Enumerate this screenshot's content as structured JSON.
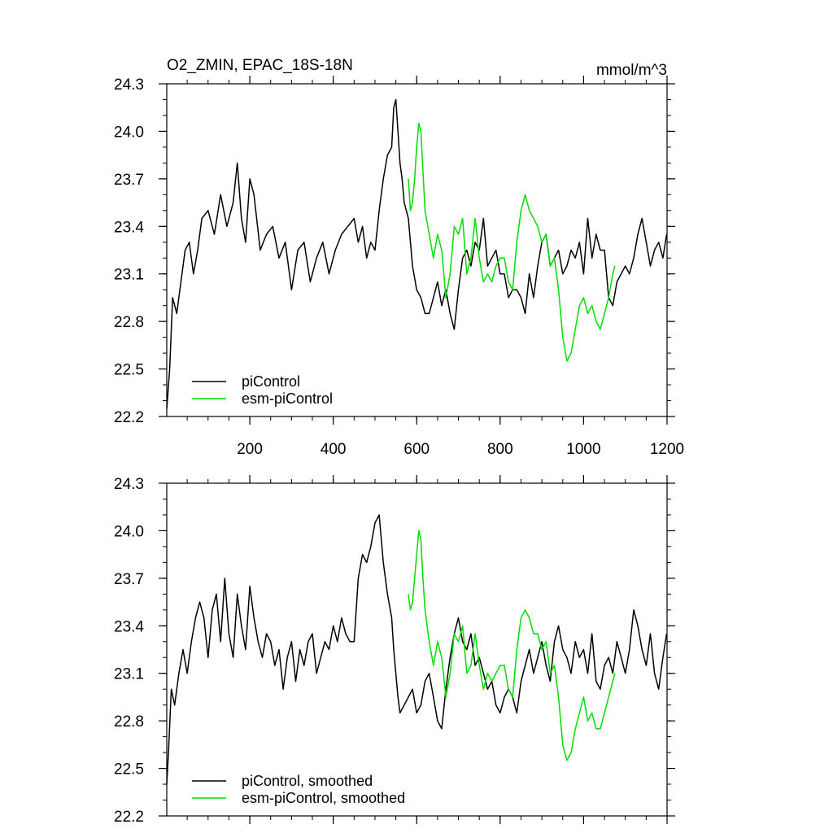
{
  "figure": {
    "title_left": "O2_ZMIN, EPAC_18S-18N",
    "title_right": "mmol/m^3"
  },
  "colors": {
    "picontrol": "#000000",
    "esm_picontrol": "#00dd00",
    "axis": "#000000"
  },
  "chart_data": [
    {
      "type": "line",
      "name": "raw",
      "xlim": [
        1,
        1200
      ],
      "ylim": [
        22.2,
        24.3
      ],
      "yticks": [
        22.2,
        22.5,
        22.8,
        23.1,
        23.4,
        23.7,
        24.0,
        24.3
      ],
      "ytick_labels": [
        "22.2",
        "22.5",
        "22.8",
        "23.1",
        "23.4",
        "23.7",
        "24.0",
        "24.3"
      ],
      "xticks": [
        200,
        400,
        600,
        800,
        1000,
        1200
      ],
      "xtick_labels": [
        "200",
        "400",
        "600",
        "800",
        "1000",
        "1200"
      ],
      "legend": {
        "position": "bottom-left",
        "entries": [
          "piControl",
          "esm-piControl"
        ]
      },
      "series": [
        {
          "name": "piControl",
          "color": "#000000",
          "x": [
            1,
            8,
            15,
            25,
            35,
            45,
            55,
            65,
            75,
            85,
            100,
            115,
            130,
            145,
            160,
            170,
            180,
            190,
            200,
            210,
            225,
            240,
            255,
            270,
            285,
            300,
            315,
            330,
            345,
            360,
            375,
            390,
            405,
            420,
            435,
            450,
            460,
            470,
            480,
            490,
            500,
            510,
            520,
            530,
            540,
            545,
            550,
            555,
            560,
            565,
            570,
            580,
            590,
            600,
            610,
            620,
            630,
            640,
            650,
            660,
            670,
            680,
            690,
            700,
            710,
            720,
            730,
            740,
            750,
            760,
            770,
            780,
            790,
            800,
            810,
            820,
            830,
            840,
            850,
            860,
            870,
            880,
            890,
            900,
            910,
            920,
            930,
            940,
            950,
            960,
            970,
            980,
            990,
            1000,
            1010,
            1020,
            1030,
            1040,
            1050,
            1060,
            1070,
            1080,
            1090,
            1100,
            1110,
            1120,
            1130,
            1140,
            1150,
            1160,
            1170,
            1180,
            1190,
            1199
          ],
          "values": [
            22.25,
            22.5,
            22.95,
            22.85,
            23.05,
            23.25,
            23.3,
            23.1,
            23.25,
            23.45,
            23.5,
            23.35,
            23.6,
            23.4,
            23.55,
            23.8,
            23.45,
            23.3,
            23.7,
            23.6,
            23.25,
            23.35,
            23.4,
            23.2,
            23.3,
            23.0,
            23.25,
            23.3,
            23.05,
            23.2,
            23.3,
            23.1,
            23.25,
            23.35,
            23.4,
            23.45,
            23.3,
            23.4,
            23.2,
            23.3,
            23.25,
            23.5,
            23.7,
            23.85,
            23.9,
            24.15,
            24.2,
            24.0,
            23.8,
            23.7,
            23.55,
            23.45,
            23.15,
            23.0,
            22.95,
            22.85,
            22.85,
            22.95,
            23.05,
            22.9,
            23.0,
            22.85,
            22.75,
            23.0,
            23.2,
            23.25,
            23.15,
            23.3,
            23.25,
            23.45,
            23.15,
            23.2,
            23.25,
            23.1,
            23.1,
            22.95,
            23.0,
            23.0,
            22.95,
            22.85,
            23.1,
            22.95,
            23.15,
            23.3,
            23.35,
            23.15,
            23.2,
            23.25,
            23.1,
            23.15,
            23.25,
            23.2,
            23.3,
            23.1,
            23.45,
            23.2,
            23.35,
            23.25,
            23.25,
            22.95,
            22.9,
            23.05,
            23.1,
            23.15,
            23.1,
            23.2,
            23.35,
            23.45,
            23.3,
            23.15,
            23.25,
            23.3,
            23.2,
            23.35
          ]
        },
        {
          "name": "esm-piControl",
          "color": "#00dd00",
          "x": [
            580,
            585,
            590,
            595,
            600,
            605,
            610,
            615,
            620,
            630,
            640,
            650,
            660,
            670,
            680,
            690,
            700,
            710,
            720,
            730,
            740,
            750,
            760,
            770,
            780,
            790,
            800,
            810,
            820,
            830,
            840,
            850,
            860,
            870,
            880,
            890,
            900,
            910,
            920,
            930,
            940,
            950,
            960,
            970,
            980,
            990,
            1000,
            1010,
            1020,
            1030,
            1040,
            1050,
            1060,
            1070,
            1075
          ],
          "values": [
            23.7,
            23.5,
            23.55,
            23.7,
            23.9,
            24.05,
            24.0,
            23.75,
            23.5,
            23.35,
            23.2,
            23.35,
            23.25,
            22.95,
            23.1,
            23.4,
            23.35,
            23.45,
            23.1,
            23.2,
            23.45,
            23.2,
            23.05,
            23.1,
            23.05,
            23.15,
            23.2,
            23.2,
            23.05,
            23.0,
            23.3,
            23.5,
            23.6,
            23.5,
            23.45,
            23.4,
            23.3,
            23.35,
            23.15,
            23.2,
            23.0,
            22.7,
            22.55,
            22.6,
            22.75,
            22.9,
            22.95,
            22.85,
            22.9,
            22.8,
            22.75,
            22.85,
            22.95,
            23.1,
            23.15
          ]
        }
      ]
    },
    {
      "type": "line",
      "name": "smoothed",
      "xlim": [
        1,
        1200
      ],
      "ylim": [
        22.2,
        24.3
      ],
      "yticks": [
        22.2,
        22.5,
        22.8,
        23.1,
        23.4,
        23.7,
        24.0,
        24.3
      ],
      "ytick_labels": [
        "22.2",
        "22.5",
        "22.8",
        "23.1",
        "23.4",
        "23.7",
        "24.0",
        "24.3"
      ],
      "xticks": [
        200,
        400,
        600,
        800,
        1000,
        1200
      ],
      "legend": {
        "position": "bottom-left",
        "entries": [
          "piControl, smoothed",
          "esm-piControl, smoothed"
        ]
      },
      "series": [
        {
          "name": "piControl, smoothed",
          "color": "#000000",
          "x": [
            1,
            5,
            12,
            20,
            30,
            40,
            50,
            60,
            70,
            80,
            90,
            100,
            110,
            120,
            130,
            140,
            150,
            160,
            170,
            180,
            190,
            200,
            210,
            220,
            230,
            240,
            250,
            260,
            270,
            280,
            290,
            300,
            310,
            320,
            330,
            340,
            350,
            360,
            370,
            380,
            390,
            400,
            410,
            420,
            430,
            440,
            450,
            460,
            470,
            480,
            490,
            500,
            510,
            520,
            530,
            540,
            545,
            550,
            555,
            560,
            570,
            580,
            590,
            600,
            610,
            620,
            630,
            640,
            650,
            660,
            670,
            680,
            690,
            700,
            710,
            720,
            730,
            740,
            750,
            760,
            770,
            780,
            790,
            800,
            810,
            820,
            830,
            840,
            850,
            860,
            870,
            880,
            890,
            900,
            910,
            920,
            930,
            940,
            950,
            960,
            970,
            980,
            990,
            1000,
            1010,
            1020,
            1030,
            1040,
            1050,
            1060,
            1070,
            1080,
            1090,
            1100,
            1110,
            1120,
            1130,
            1140,
            1150,
            1160,
            1170,
            1180,
            1190,
            1199
          ],
          "values": [
            22.4,
            22.6,
            23.0,
            22.9,
            23.1,
            23.25,
            23.1,
            23.3,
            23.45,
            23.55,
            23.45,
            23.2,
            23.5,
            23.6,
            23.3,
            23.7,
            23.35,
            23.2,
            23.6,
            23.4,
            23.25,
            23.65,
            23.45,
            23.3,
            23.2,
            23.35,
            23.3,
            23.15,
            23.25,
            23.0,
            23.2,
            23.3,
            23.05,
            23.25,
            23.15,
            23.3,
            23.35,
            23.1,
            23.2,
            23.3,
            23.25,
            23.4,
            23.3,
            23.45,
            23.35,
            23.3,
            23.3,
            23.7,
            23.85,
            23.8,
            23.9,
            24.05,
            24.1,
            23.8,
            23.6,
            23.45,
            23.25,
            23.1,
            22.95,
            22.85,
            22.9,
            22.95,
            23.0,
            22.85,
            22.9,
            23.05,
            23.1,
            22.95,
            22.8,
            22.75,
            23.0,
            23.2,
            23.35,
            23.45,
            23.3,
            23.25,
            23.35,
            23.15,
            23.2,
            23.1,
            23.0,
            23.05,
            22.9,
            22.85,
            22.95,
            23.0,
            22.95,
            22.85,
            23.05,
            23.15,
            23.25,
            23.1,
            23.2,
            23.3,
            23.15,
            23.05,
            23.3,
            23.4,
            23.25,
            23.2,
            23.1,
            23.3,
            23.2,
            23.25,
            23.1,
            23.35,
            23.05,
            23.0,
            23.15,
            23.2,
            23.1,
            23.3,
            23.2,
            23.1,
            23.25,
            23.5,
            23.4,
            23.25,
            23.15,
            23.35,
            23.1,
            23.0,
            23.2,
            23.35
          ]
        },
        {
          "name": "esm-piControl, smoothed",
          "color": "#00dd00",
          "x": [
            580,
            585,
            590,
            595,
            600,
            605,
            610,
            615,
            620,
            630,
            640,
            650,
            660,
            670,
            680,
            690,
            700,
            710,
            720,
            730,
            740,
            750,
            760,
            770,
            780,
            790,
            800,
            810,
            820,
            830,
            840,
            850,
            860,
            870,
            880,
            890,
            900,
            910,
            920,
            930,
            940,
            950,
            960,
            970,
            980,
            990,
            1000,
            1010,
            1020,
            1030,
            1040,
            1050,
            1060,
            1070,
            1075
          ],
          "values": [
            23.6,
            23.5,
            23.55,
            23.7,
            23.85,
            24.0,
            23.95,
            23.7,
            23.5,
            23.3,
            23.15,
            23.3,
            23.2,
            22.95,
            23.1,
            23.35,
            23.3,
            23.4,
            23.1,
            23.15,
            23.35,
            23.15,
            23.0,
            23.1,
            23.05,
            23.1,
            23.15,
            23.15,
            23.0,
            22.95,
            23.25,
            23.45,
            23.5,
            23.45,
            23.35,
            23.35,
            23.25,
            23.3,
            23.1,
            23.15,
            22.95,
            22.65,
            22.55,
            22.6,
            22.75,
            22.85,
            22.95,
            22.8,
            22.85,
            22.75,
            22.75,
            22.85,
            22.95,
            23.05,
            23.1
          ]
        }
      ]
    }
  ]
}
